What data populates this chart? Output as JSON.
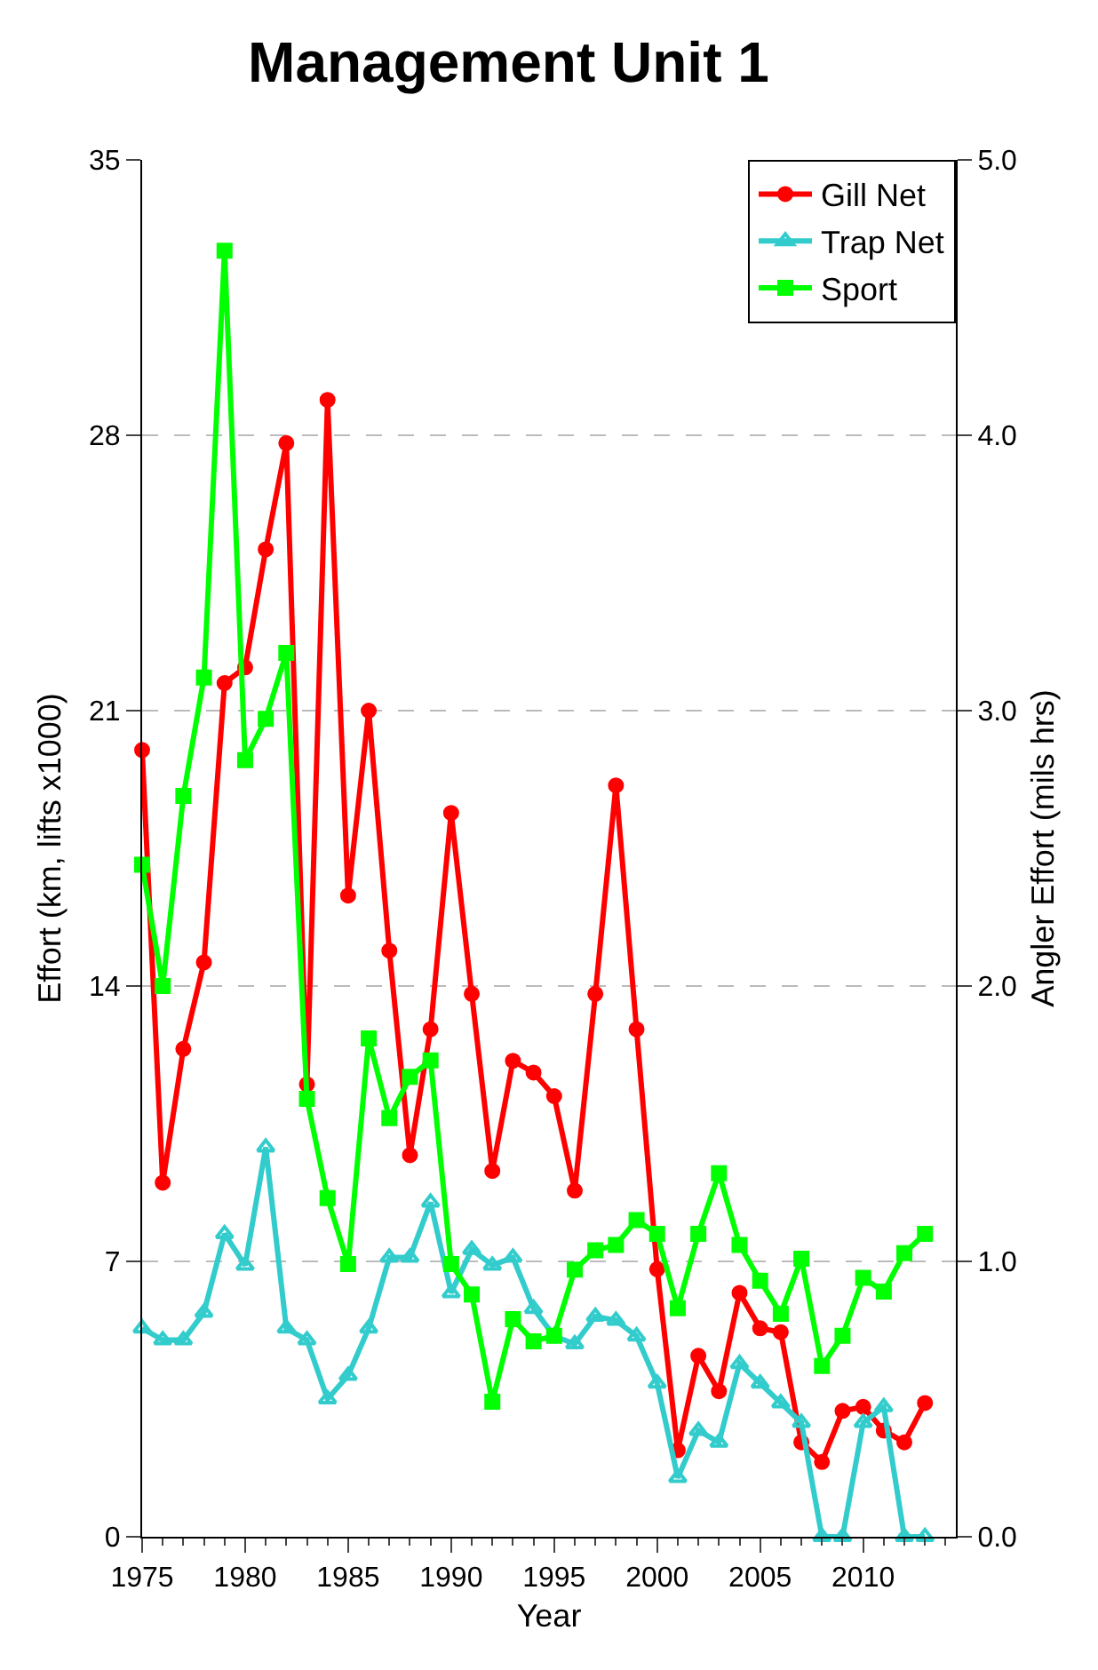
{
  "chart_data": {
    "type": "line",
    "title": "Management Unit 1",
    "xlabel": "Year",
    "ylabel": "Effort (km, lifts x1000)",
    "y2label": "Angler Effort (mils hrs)",
    "x": [
      1975,
      1976,
      1977,
      1978,
      1979,
      1980,
      1981,
      1982,
      1983,
      1984,
      1985,
      1986,
      1987,
      1988,
      1989,
      1990,
      1991,
      1992,
      1993,
      1994,
      1995,
      1996,
      1997,
      1998,
      1999,
      2000,
      2001,
      2002,
      2003,
      2004,
      2005,
      2006,
      2007,
      2008,
      2009,
      2010,
      2011,
      2012,
      2013
    ],
    "series": [
      {
        "name": "Gill Net",
        "color": "#ff0000",
        "marker": "circle",
        "values": [
          20.0,
          9.0,
          12.4,
          14.6,
          21.7,
          22.1,
          25.1,
          27.8,
          11.5,
          28.9,
          16.3,
          21.0,
          14.9,
          9.7,
          12.9,
          18.4,
          13.8,
          9.3,
          12.1,
          11.8,
          11.2,
          8.8,
          13.8,
          19.1,
          12.9,
          6.8,
          2.2,
          4.6,
          3.7,
          6.2,
          5.3,
          5.2,
          2.4,
          1.9,
          3.2,
          3.3,
          2.7,
          2.4,
          3.4
        ]
      },
      {
        "name": "Trap Net",
        "color": "#33cccc",
        "marker": "triangle",
        "values": [
          5.3,
          5.0,
          5.0,
          5.7,
          7.7,
          6.9,
          9.9,
          5.3,
          5.0,
          3.5,
          4.1,
          5.3,
          7.1,
          7.1,
          8.5,
          6.2,
          7.3,
          6.9,
          7.1,
          5.8,
          5.1,
          4.9,
          5.6,
          5.5,
          5.1,
          3.9,
          1.5,
          2.7,
          2.4,
          4.4,
          3.9,
          3.4,
          2.9,
          0,
          0,
          2.9,
          3.3,
          0,
          0
        ]
      },
      {
        "name": "Sport",
        "color": "#00ff00",
        "marker": "square",
        "axis": "y2",
        "values": [
          2.44,
          2.0,
          2.69,
          3.12,
          4.67,
          2.82,
          2.97,
          3.21,
          1.59,
          1.23,
          0.99,
          1.81,
          1.52,
          1.67,
          1.73,
          0.99,
          0.88,
          0.49,
          0.79,
          0.71,
          0.73,
          0.97,
          1.04,
          1.06,
          1.15,
          1.1,
          0.83,
          1.1,
          1.32,
          1.06,
          0.93,
          0.81,
          1.01,
          0.62,
          0.73,
          0.94,
          0.89,
          1.03,
          1.1
        ]
      }
    ],
    "xlim": [
      1975,
      2014.5
    ],
    "xticks": [
      1975,
      1980,
      1985,
      1990,
      1995,
      2000,
      2005,
      2010
    ],
    "ylim": [
      0,
      35
    ],
    "yticks": [
      0,
      7,
      14,
      21,
      28,
      35
    ],
    "y2lim": [
      0,
      5
    ],
    "y2ticks": [
      {
        "value": 0,
        "label": "0.0"
      },
      {
        "value": 1,
        "label": "1.0"
      },
      {
        "value": 2,
        "label": "2.0"
      },
      {
        "value": 3,
        "label": "3.0"
      },
      {
        "value": 4,
        "label": "4.0"
      },
      {
        "value": 5,
        "label": "5.0"
      }
    ],
    "grid": "y",
    "legend": "top right",
    "line_style": "solid"
  }
}
